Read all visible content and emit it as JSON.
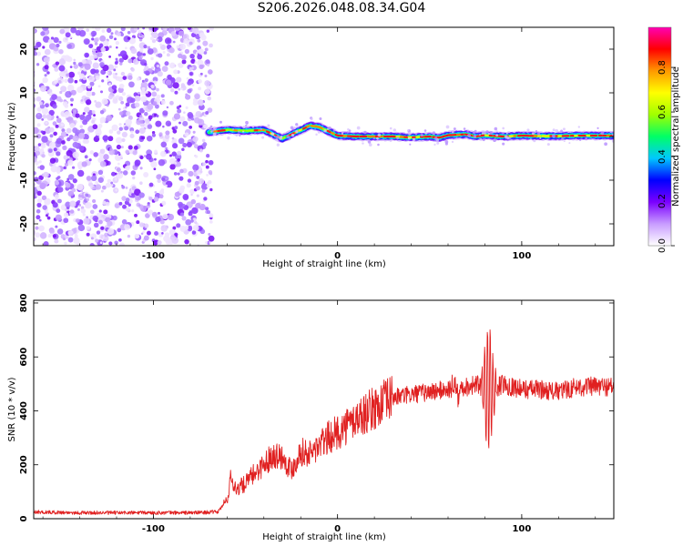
{
  "title": "S206.2026.048.08.34.G04",
  "chart_data": [
    {
      "type": "heatmap",
      "xlabel": "Height of straight line (km)",
      "ylabel": "Frequency (Hz)",
      "xlim": [
        -165,
        150
      ],
      "ylim": [
        -25,
        25
      ],
      "xticks": [
        -100,
        0,
        100
      ],
      "xtick_labels": [
        "-100",
        "0",
        "100"
      ],
      "yticks": [
        -20,
        -10,
        0,
        10,
        20
      ],
      "ytick_labels": [
        "-20",
        "-10",
        "0",
        "10",
        "20"
      ],
      "colorbar": {
        "label": "Normalized spectral amplitude",
        "range": [
          0.0,
          0.98
        ],
        "ticks": [
          0.0,
          0.2,
          0.4,
          0.6,
          0.8
        ],
        "tick_labels": [
          "0.0",
          "0.2",
          "0.4",
          "0.6",
          "0.8"
        ],
        "colors": [
          "#ffffff",
          "#c89cff",
          "#7b00ff",
          "#0000ff",
          "#00c8ff",
          "#00ff66",
          "#a0ff00",
          "#ffff00",
          "#ff9900",
          "#ff0000",
          "#ff00b4"
        ]
      },
      "noise_region_x": [
        -165,
        -70
      ],
      "signal_ridge": {
        "x": [
          -70,
          -60,
          -50,
          -40,
          -35,
          -30,
          -25,
          -20,
          -15,
          -10,
          -5,
          0,
          10,
          20,
          30,
          40,
          50,
          55,
          60,
          70,
          75,
          80,
          90,
          100,
          110,
          120,
          130,
          140,
          150
        ],
        "y": [
          1,
          1.5,
          1.3,
          1.5,
          0.5,
          -0.5,
          0.5,
          1.5,
          2.5,
          2.2,
          1.2,
          0.2,
          0,
          0,
          0,
          -0.2,
          0,
          -0.3,
          0.3,
          0.5,
          0,
          0.3,
          0,
          0.2,
          0.1,
          0.1,
          0.2,
          0.2,
          0.2
        ]
      }
    },
    {
      "type": "line",
      "xlabel": "Height of straight line (km)",
      "ylabel": "SNR (10 * v/v)",
      "xlim": [
        -165,
        150
      ],
      "ylim": [
        0,
        810
      ],
      "xticks": [
        -100,
        0,
        100
      ],
      "xtick_labels": [
        "-100",
        "0",
        "100"
      ],
      "yticks": [
        0,
        200,
        400,
        600,
        800
      ],
      "ytick_labels": [
        "0",
        "200",
        "400",
        "600",
        "800"
      ],
      "series": [
        {
          "name": "SNR",
          "color": "#e02020",
          "x": [
            -165,
            -140,
            -110,
            -80,
            -65,
            -60,
            -58,
            -55,
            -50,
            -45,
            -40,
            -35,
            -30,
            -25,
            -20,
            -15,
            -10,
            -5,
            0,
            10,
            20,
            30,
            40,
            50,
            60,
            70,
            75,
            80,
            82,
            85,
            90,
            100,
            110,
            120,
            130,
            140,
            150
          ],
          "y": [
            25,
            22,
            22,
            22,
            25,
            70,
            150,
            110,
            130,
            170,
            200,
            240,
            230,
            180,
            250,
            240,
            270,
            300,
            320,
            370,
            410,
            450,
            460,
            470,
            480,
            490,
            500,
            480,
            500,
            480,
            500,
            480,
            480,
            470,
            490,
            490,
            490
          ]
        }
      ]
    }
  ]
}
